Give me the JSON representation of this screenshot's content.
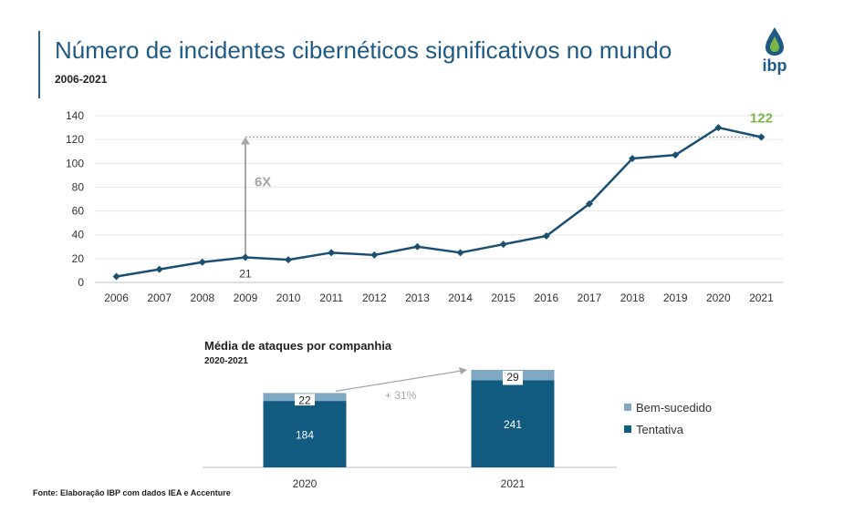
{
  "header": {
    "title": "Número de incidentes cibernéticos significativos no mundo",
    "subtitle": "2006-2021",
    "logo_text": "ibp"
  },
  "colors": {
    "accent": "#1f5a85",
    "series_line": "#1b4f72",
    "highlight_green": "#7ab648",
    "bar_dark": "#115a80",
    "bar_light": "#7fa8c2",
    "annotation_gray": "#a6a6a6"
  },
  "chart_data": [
    {
      "type": "line",
      "x": [
        "2006",
        "2007",
        "2008",
        "2009",
        "2010",
        "2011",
        "2012",
        "2013",
        "2014",
        "2015",
        "2016",
        "2017",
        "2018",
        "2019",
        "2020",
        "2021"
      ],
      "series": [
        {
          "values": [
            5,
            11,
            17,
            21,
            19,
            25,
            23,
            30,
            25,
            32,
            39,
            66,
            104,
            107,
            130,
            122
          ]
        }
      ],
      "ylim": [
        0,
        140
      ],
      "yticks": [
        0,
        20,
        40,
        60,
        80,
        100,
        120,
        140
      ],
      "grid": true,
      "annotations": {
        "start_label": "21",
        "end_label": "122",
        "multiplier_label": "6X"
      }
    },
    {
      "type": "bar",
      "title": "Média de ataques por companhia",
      "subtitle": "2020-2021",
      "categories": [
        "2020",
        "2021"
      ],
      "stacked": true,
      "series": [
        {
          "name": "Tentativa",
          "values": [
            184,
            241
          ]
        },
        {
          "name": "Bem-sucedido",
          "values": [
            22,
            29
          ]
        }
      ],
      "growth_label": "+ 31%",
      "legend_position": "right"
    }
  ],
  "footer": {
    "source": "Fonte: Elaboração IBP com dados IEA e Accenture"
  }
}
